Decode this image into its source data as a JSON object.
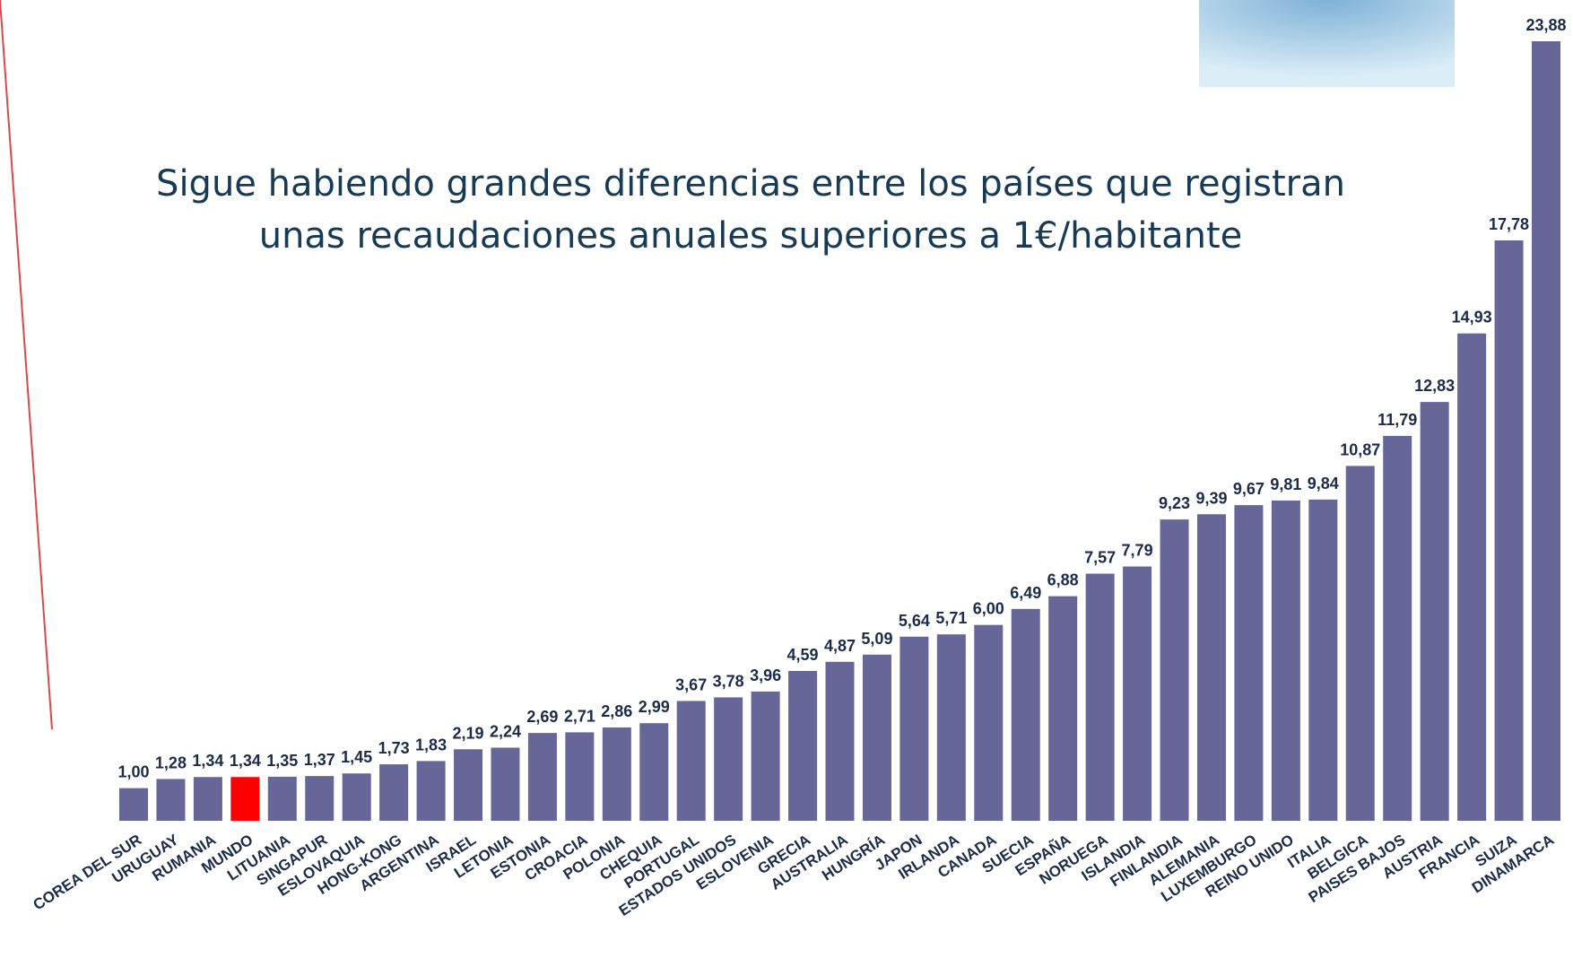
{
  "chart_data": {
    "type": "bar",
    "title": [
      "Sigue habiendo grandes diferencias entre los países que registran",
      "unas recaudaciones anuales superiores a 1€/habitante"
    ],
    "categories": [
      "COREA DEL SUR",
      "URUGUAY",
      "RUMANIA",
      "MUNDO",
      "LITUANIA",
      "SINGAPUR",
      "ESLOVAQUIA",
      "HONG-KONG",
      "ARGENTINA",
      "ISRAEL",
      "LETONIA",
      "ESTONIA",
      "CROACIA",
      "POLONIA",
      "CHEQUIA",
      "PORTUGAL",
      "ESTADOS UNIDOS",
      "ESLOVENIA",
      "GRECIA",
      "AUSTRALIA",
      "HUNGRÍA",
      "JAPON",
      "IRLANDA",
      "CANADA",
      "SUECIA",
      "ESPAÑA",
      "NORUEGA",
      "ISLANDIA",
      "FINLANDIA",
      "ALEMANIA",
      "LUXEMBURGO",
      "REINO UNIDO",
      "ITALIA",
      "BELGICA",
      "PAISES BAJOS",
      "AUSTRIA",
      "FRANCIA",
      "SUIZA",
      "DINAMARCA"
    ],
    "values": [
      1.0,
      1.28,
      1.34,
      1.34,
      1.35,
      1.37,
      1.45,
      1.73,
      1.83,
      2.19,
      2.24,
      2.69,
      2.71,
      2.86,
      2.99,
      3.67,
      3.78,
      3.96,
      4.59,
      4.87,
      5.09,
      5.64,
      5.71,
      6.0,
      6.49,
      6.88,
      7.57,
      7.79,
      9.23,
      9.39,
      9.67,
      9.81,
      9.84,
      10.87,
      11.79,
      12.83,
      14.93,
      17.78,
      23.88
    ],
    "value_labels": [
      "1,00",
      "1,28",
      "1,34",
      "1,34",
      "1,35",
      "1,37",
      "1,45",
      "1,73",
      "1,83",
      "2,19",
      "2,24",
      "2,69",
      "2,71",
      "2,86",
      "2,99",
      "3,67",
      "3,78",
      "3,96",
      "4,59",
      "4,87",
      "5,09",
      "5,64",
      "5,71",
      "6,00",
      "6,49",
      "6,88",
      "7,57",
      "7,79",
      "9,23",
      "9,39",
      "9,67",
      "9,81",
      "9,84",
      "10,87",
      "11,79",
      "12,83",
      "14,93",
      "17,78",
      "23,88"
    ],
    "color": "#676699",
    "highlight_color": "#ff0000",
    "highlight": [
      "MUNDO"
    ]
  }
}
